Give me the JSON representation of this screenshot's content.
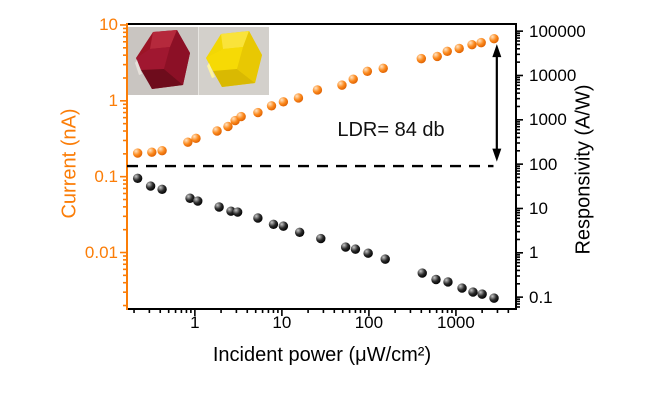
{
  "figure": {
    "kind": "photodetector log-log response plot",
    "accent_orange": "#FB7D07",
    "black": "#000000"
  },
  "chart_data": {
    "type": "scatter",
    "log_x": true,
    "log_y": true,
    "xlabel": "Incident power (μW/cm²)",
    "ylabel_left": "Current (nA)",
    "ylabel_right": "Responsivity (A/W)",
    "x_range": [
      0.166,
      4900
    ],
    "y_left_range": [
      0.0018,
      10.3
    ],
    "y_right_range": [
      0.054,
      145000
    ],
    "x_major_ticks": [
      1,
      10,
      100,
      1000
    ],
    "x_major_labels": [
      "1",
      "10",
      "100",
      "1000"
    ],
    "y_left_major_ticks": [
      10,
      1,
      0.1,
      0.01
    ],
    "y_left_labels": [
      "10",
      "1",
      "0.1",
      "0.01"
    ],
    "y_right_major_ticks": [
      100000,
      10000,
      1000,
      100,
      10,
      1,
      0.1
    ],
    "y_right_labels": [
      "100000",
      "10000",
      "1000",
      "100",
      "10",
      "1",
      "0.1"
    ],
    "series": [
      {
        "name": "responsivity",
        "axis": "right",
        "color": "#000000",
        "marker_stops": [
          "#c8c8c8",
          "#2b2b2b",
          "#000000"
        ],
        "x": [
          0.22,
          0.31,
          0.42,
          0.88,
          1.08,
          1.9,
          2.6,
          3.1,
          5.3,
          8.0,
          10.4,
          16,
          28,
          54,
          70,
          98,
          154,
          410,
          590,
          810,
          1175,
          1570,
          2000,
          2740
        ],
        "y": [
          48,
          32,
          27,
          17,
          14.7,
          10.8,
          8.7,
          8.3,
          6.1,
          4.4,
          4.0,
          2.9,
          2.1,
          1.35,
          1.21,
          0.98,
          0.72,
          0.35,
          0.25,
          0.22,
          0.16,
          0.13,
          0.117,
          0.095
        ]
      },
      {
        "name": "photocurrent",
        "axis": "left",
        "color": "#FB7D07",
        "marker_stops": [
          "#ffe3c2",
          "#fc8a1e",
          "#dd5f00"
        ],
        "x": [
          0.22,
          0.32,
          0.42,
          0.83,
          1.03,
          1.8,
          2.4,
          2.9,
          3.4,
          5.3,
          7.6,
          10.4,
          15.5,
          25.6,
          49,
          66,
          96,
          146,
          400,
          610,
          795,
          1090,
          1530,
          1950,
          2740
        ],
        "y": [
          0.205,
          0.21,
          0.22,
          0.285,
          0.32,
          0.4,
          0.46,
          0.55,
          0.62,
          0.7,
          0.86,
          0.97,
          1.09,
          1.39,
          1.61,
          1.93,
          2.45,
          2.68,
          3.6,
          3.85,
          4.5,
          4.9,
          5.5,
          5.85,
          6.6
        ]
      }
    ],
    "dashed_line": {
      "current_nA": 0.138,
      "x_start_power": 0.166,
      "x_end_power": 2700
    },
    "arrow": {
      "x_power": 2950,
      "top_current": 5.6,
      "bottom_current": 0.158
    },
    "annotation": {
      "text": "LDR= 84 db"
    },
    "legend": "none",
    "grid": false
  },
  "inset": {
    "left_crystal": "red hexagonal single crystal photo",
    "right_crystal": "yellow hexagonal single crystal photo",
    "left_crystal_color": "#9c1426",
    "right_crystal_color": "#f2d705"
  }
}
